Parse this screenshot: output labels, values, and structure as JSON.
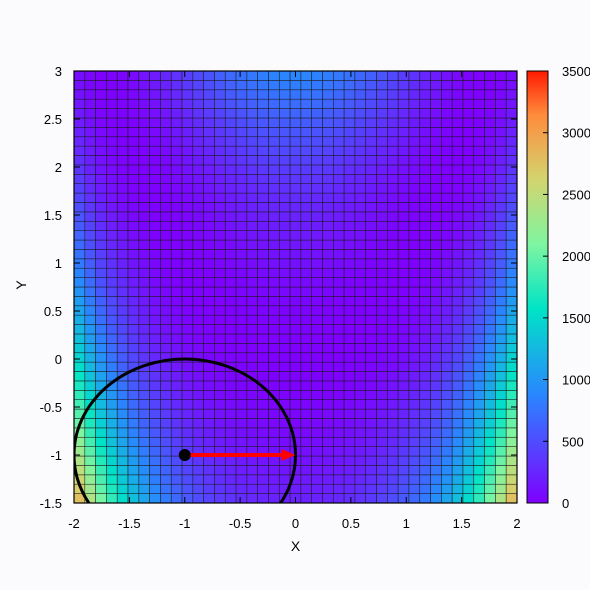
{
  "chart_data": {
    "type": "heatmap",
    "title": "",
    "xlabel": "X",
    "ylabel": "Y",
    "xlim": [
      -2,
      2
    ],
    "ylim": [
      -1.5,
      3
    ],
    "x_ticks": [
      "-2",
      "-1.5",
      "-1",
      "-0.5",
      "0",
      "0.5",
      "1",
      "1.5",
      "2"
    ],
    "y_ticks": [
      "-1.5",
      "-1",
      "-0.5",
      "0",
      "0.5",
      "1",
      "1.5",
      "2",
      "2.5",
      "3"
    ],
    "colorbar": {
      "range": [
        0,
        3500
      ],
      "ticks": [
        "0",
        "500",
        "1000",
        "1500",
        "2000",
        "2500",
        "3000",
        "3500"
      ],
      "colormap": "rainbow"
    },
    "grid": true,
    "surface": "rosenbrock (1 - x)^2 + 100 (y - x^2)^2",
    "overlays": {
      "circle": {
        "center": [
          -1,
          -1
        ],
        "radius": 1
      },
      "point": [
        -1,
        -1
      ],
      "arrow": {
        "from": [
          -1,
          -1
        ],
        "to": [
          0,
          -1
        ],
        "color": "#ff0000"
      }
    }
  }
}
